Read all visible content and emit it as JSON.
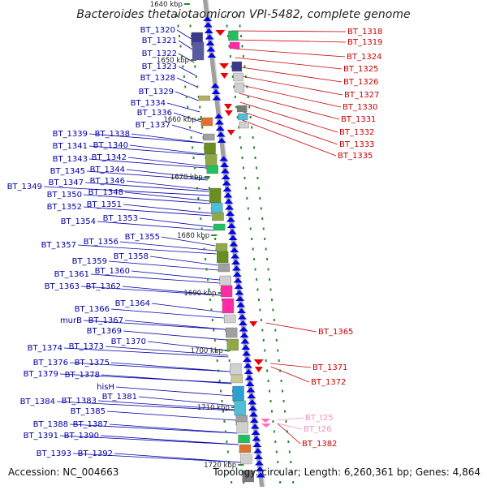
{
  "header": {
    "title": "Bacteroides thetaiotaomicron VPI-5482, complete genome"
  },
  "footer": {
    "accession": "Accession: NC_004663",
    "topology": "Topology: circular; Length: 6,260,361 bp; Genes: 4,864"
  },
  "colors": {
    "left_gene_label": "#0000aa",
    "right_gene_label": "#cc0000",
    "trna_label": "#ff8cc8",
    "forward_arrow": "#0000ee",
    "reverse_arrow": "#ee0000",
    "tick": "#2a8a2a",
    "backbone": "#a0a0a0"
  },
  "scale_labels": [
    "1640 kbp",
    "1650 kbp",
    "1660 kbp",
    "1670 kbp",
    "1680 kbp",
    "1690 kbp",
    "1700 kbp",
    "1710 kbp",
    "1720 kbp"
  ],
  "left_labels": [
    "BT_1320",
    "BT_1321",
    "BT_1322",
    "BT_1323",
    "BT_1328",
    "BT_1329",
    "BT_1334",
    "BT_1336",
    "BT_1337",
    "BT_1339",
    "BT_1338",
    "BT_1341",
    "BT_1340",
    "BT_1343",
    "BT_1342",
    "BT_1345",
    "BT_1344",
    "BT_1349",
    "BT_1347",
    "BT_1346",
    "BT_1350",
    "BT_1348",
    "BT_1352",
    "BT_1351",
    "BT_1354",
    "BT_1353",
    "BT_1355",
    "BT_1357",
    "BT_1356",
    "BT_1359",
    "BT_1358",
    "BT_1361",
    "BT_1360",
    "BT_1363",
    "BT_1362",
    "BT_1364",
    "BT_1366",
    "murB",
    "BT_1367",
    "BT_1369",
    "BT_1370",
    "BT_1374",
    "BT_1373",
    "BT_1376",
    "BT_1375",
    "BT_1379",
    "BT_1378",
    "hisH",
    "BT_1381",
    "BT_1384",
    "BT_1383",
    "BT_1385",
    "BT_1388",
    "BT_1387",
    "BT_1391",
    "BT_1390",
    "BT_1393",
    "BT_1392"
  ],
  "right_labels": [
    "BT_1318",
    "BT_1319",
    "BT_1324",
    "BT_1325",
    "BT_1326",
    "BT_1327",
    "BT_1330",
    "BT_1331",
    "BT_1332",
    "BT_1333",
    "BT_1335",
    "BT_1365",
    "BT_1371",
    "BT_1372",
    "BT_t25",
    "BT_t26",
    "BT_1382"
  ]
}
